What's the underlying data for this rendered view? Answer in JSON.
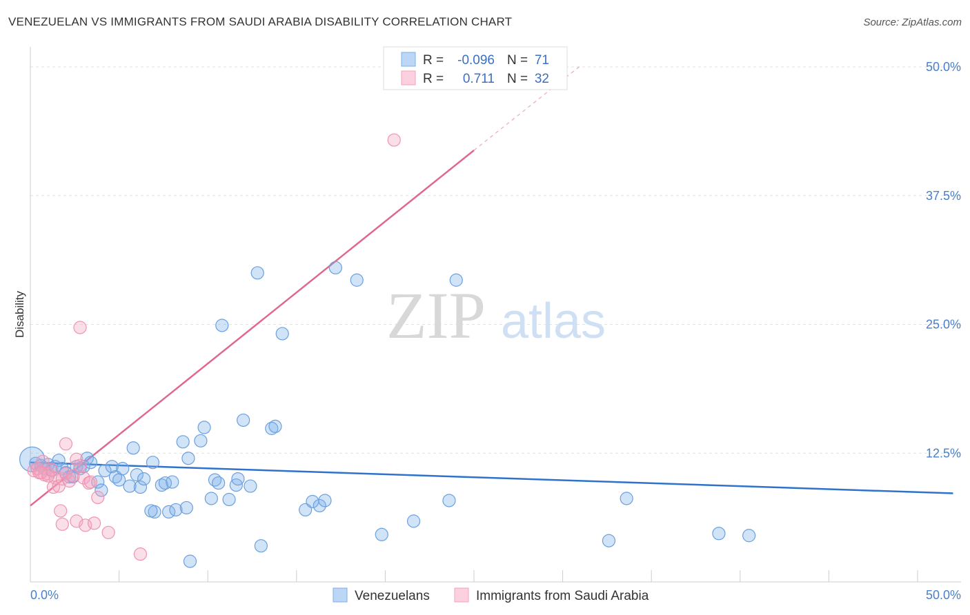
{
  "title": "VENEZUELAN VS IMMIGRANTS FROM SAUDI ARABIA DISABILITY CORRELATION CHART",
  "source": "Source: ZipAtlas.com",
  "watermark": {
    "zip": "ZIP",
    "atlas": "atlas"
  },
  "chart_data": {
    "type": "scatter",
    "ylabel": "Disability",
    "xlim": [
      0,
      50
    ],
    "ylim": [
      0,
      50
    ],
    "x_ticks": [
      "0.0%",
      "50.0%"
    ],
    "y_ticks": [
      {
        "value": 12.5,
        "label": "12.5%"
      },
      {
        "value": 25.0,
        "label": "25.0%"
      },
      {
        "value": 37.5,
        "label": "37.5%"
      },
      {
        "value": 50.0,
        "label": "50.0%"
      }
    ],
    "legend": {
      "row1": {
        "r_label": "R =",
        "r_value": "-0.096",
        "n_label": "N =",
        "n_value": "71"
      },
      "row2": {
        "r_label": "R =",
        "r_value": "0.711",
        "n_label": "N =",
        "n_value": "32"
      }
    },
    "series": [
      {
        "name": "Venezuelans",
        "color": "#7baee8",
        "trend": {
          "x": [
            0,
            52
          ],
          "y": [
            11.6,
            8.6
          ]
        },
        "points": [
          [
            0.3,
            11.5
          ],
          [
            0.6,
            11.3
          ],
          [
            0.8,
            11.0
          ],
          [
            1.0,
            11.4
          ],
          [
            1.2,
            10.8
          ],
          [
            1.4,
            11.2
          ],
          [
            1.6,
            11.8
          ],
          [
            1.8,
            11.0
          ],
          [
            2.0,
            10.6
          ],
          [
            2.2,
            10.2
          ],
          [
            2.4,
            10.2
          ],
          [
            2.6,
            11.2
          ],
          [
            2.8,
            11.0
          ],
          [
            3.0,
            11.2
          ],
          [
            3.2,
            12.0
          ],
          [
            3.4,
            11.6
          ],
          [
            3.8,
            9.7
          ],
          [
            4.0,
            8.9
          ],
          [
            4.2,
            10.8
          ],
          [
            4.6,
            11.2
          ],
          [
            4.8,
            10.2
          ],
          [
            5.0,
            9.9
          ],
          [
            5.2,
            11.0
          ],
          [
            5.6,
            9.3
          ],
          [
            5.8,
            13.0
          ],
          [
            6.0,
            10.4
          ],
          [
            6.2,
            9.2
          ],
          [
            6.4,
            10.0
          ],
          [
            6.9,
            11.6
          ],
          [
            7.0,
            6.8
          ],
          [
            6.8,
            6.9
          ],
          [
            7.4,
            9.4
          ],
          [
            7.6,
            9.6
          ],
          [
            8.0,
            9.7
          ],
          [
            7.8,
            6.8
          ],
          [
            8.2,
            7.0
          ],
          [
            8.6,
            13.6
          ],
          [
            8.8,
            7.2
          ],
          [
            8.9,
            12.0
          ],
          [
            9.0,
            2.0
          ],
          [
            9.6,
            13.7
          ],
          [
            9.8,
            15.0
          ],
          [
            10.2,
            8.1
          ],
          [
            10.4,
            9.9
          ],
          [
            10.6,
            9.6
          ],
          [
            10.8,
            24.9
          ],
          [
            11.2,
            8.0
          ],
          [
            11.6,
            9.4
          ],
          [
            11.7,
            10.0
          ],
          [
            12.0,
            15.7
          ],
          [
            12.4,
            9.3
          ],
          [
            12.8,
            30.0
          ],
          [
            13.0,
            3.5
          ],
          [
            13.6,
            14.9
          ],
          [
            13.8,
            15.1
          ],
          [
            14.2,
            24.1
          ],
          [
            15.5,
            7.0
          ],
          [
            15.9,
            7.8
          ],
          [
            16.3,
            7.4
          ],
          [
            16.6,
            7.9
          ],
          [
            17.2,
            30.5
          ],
          [
            18.4,
            29.3
          ],
          [
            19.8,
            4.6
          ],
          [
            21.6,
            5.9
          ],
          [
            23.6,
            7.9
          ],
          [
            24.0,
            29.3
          ],
          [
            32.6,
            4.0
          ],
          [
            33.6,
            8.1
          ],
          [
            38.8,
            4.7
          ],
          [
            40.5,
            4.5
          ],
          [
            0.1,
            11.9
          ]
        ],
        "big_point_index": 70
      },
      {
        "name": "Immigrants from Saudi Arabia",
        "color": "#f3a2bd",
        "trend": {
          "x": [
            0,
            25
          ],
          "y": [
            7.4,
            41.9
          ]
        },
        "trend_dashed": {
          "x": [
            25,
            31
          ],
          "y": [
            41.9,
            50.1
          ]
        },
        "points": [
          [
            0.2,
            10.8
          ],
          [
            0.4,
            11.0
          ],
          [
            0.5,
            10.6
          ],
          [
            0.7,
            11.7
          ],
          [
            0.8,
            10.4
          ],
          [
            1.0,
            10.5
          ],
          [
            1.2,
            10.9
          ],
          [
            1.4,
            10.1
          ],
          [
            1.3,
            9.2
          ],
          [
            1.6,
            9.3
          ],
          [
            1.8,
            10.0
          ],
          [
            1.7,
            6.9
          ],
          [
            1.8,
            5.6
          ],
          [
            2.0,
            10.5
          ],
          [
            2.2,
            9.8
          ],
          [
            2.4,
            10.3
          ],
          [
            2.6,
            11.9
          ],
          [
            2.8,
            11.3
          ],
          [
            2.6,
            5.9
          ],
          [
            3.0,
            10.1
          ],
          [
            2.8,
            24.7
          ],
          [
            3.1,
            5.5
          ],
          [
            3.3,
            9.6
          ],
          [
            3.4,
            9.7
          ],
          [
            3.6,
            5.7
          ],
          [
            3.8,
            8.2
          ],
          [
            4.4,
            4.8
          ],
          [
            6.2,
            2.7
          ],
          [
            20.5,
            42.9
          ],
          [
            2.0,
            13.4
          ],
          [
            1.0,
            10.3
          ],
          [
            0.6,
            10.6
          ]
        ]
      }
    ]
  },
  "bottom_legend": [
    "Venezuelans",
    "Immigrants from Saudi Arabia"
  ]
}
